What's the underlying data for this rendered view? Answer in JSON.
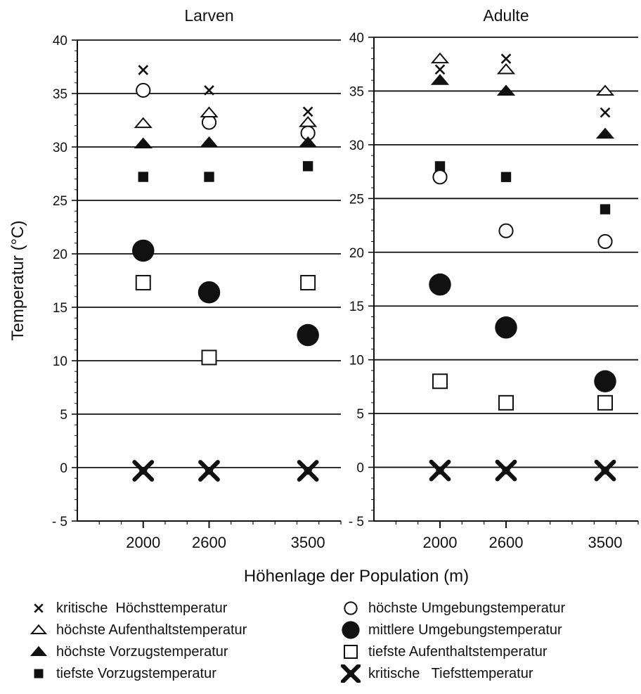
{
  "chart_data": {
    "type": "scatter",
    "ylabel": "Temperatur (°C)",
    "xlabel": "Höhenlage der Population (m)",
    "ylim": [
      -5,
      40
    ],
    "yticks": [
      40,
      35,
      30,
      25,
      20,
      15,
      10,
      5,
      0,
      -5
    ],
    "ytick_labels": [
      "40",
      "35",
      "30",
      "25",
      "20",
      "15",
      "10",
      "5",
      "0",
      "- 5"
    ],
    "xlim": [
      1400,
      3800
    ],
    "xticks": [
      2000,
      2600,
      3500
    ],
    "grid": "horizontal lines at every 5 °C",
    "legend_placement": "bottom",
    "series_meta": [
      {
        "key": "krit_hoechst",
        "name": "kritische  Höchsttemperatur",
        "marker": "small-x"
      },
      {
        "key": "hoechste_aufenthalt",
        "name": "höchste Aufenthaltstemperatur",
        "marker": "open-triangle"
      },
      {
        "key": "hoechste_vorzug",
        "name": "höchste Vorzugstemperatur",
        "marker": "filled-triangle"
      },
      {
        "key": "tiefste_vorzug",
        "name": "tiefste Vorzugstemperatur",
        "marker": "filled-square"
      },
      {
        "key": "hoechste_umgebung",
        "name": "höchste Umgebungstemperatur",
        "marker": "open-circle"
      },
      {
        "key": "mittlere_umgebung",
        "name": "mittlere Umgebungstemperatur",
        "marker": "filled-circle"
      },
      {
        "key": "tiefste_aufenthalt",
        "name": "tiefste Aufenthaltstemperatur",
        "marker": "open-square"
      },
      {
        "key": "krit_tiefst",
        "name": "kritische   Tiefsttemperatur",
        "marker": "big-x"
      }
    ],
    "panels": [
      {
        "title": "Larven",
        "x": [
          2000,
          2600,
          3500
        ],
        "series": {
          "krit_hoechst": [
            37.2,
            35.3,
            33.3
          ],
          "hoechste_aufenthalt": [
            32.2,
            33.2,
            32.3
          ],
          "hoechste_vorzug": [
            30.3,
            30.4,
            30.4
          ],
          "tiefste_vorzug": [
            27.2,
            27.2,
            28.2
          ],
          "hoechste_umgebung": [
            35.3,
            32.3,
            31.3
          ],
          "mittlere_umgebung": [
            20.3,
            16.4,
            12.4
          ],
          "tiefste_aufenthalt": [
            17.3,
            10.3,
            17.3
          ],
          "krit_tiefst": [
            -0.3,
            -0.3,
            -0.3
          ]
        }
      },
      {
        "title": "Adulte",
        "x": [
          2000,
          2600,
          3500
        ],
        "series": {
          "krit_hoechst": [
            37.0,
            38.0,
            33.0
          ],
          "hoechste_aufenthalt": [
            38.0,
            37.0,
            35.0
          ],
          "hoechste_vorzug": [
            36.0,
            35.0,
            31.0
          ],
          "tiefste_vorzug": [
            28.0,
            27.0,
            24.0
          ],
          "hoechste_umgebung": [
            27.0,
            22.0,
            21.0
          ],
          "mittlere_umgebung": [
            17.0,
            13.0,
            8.0
          ],
          "tiefste_aufenthalt": [
            8.0,
            6.0,
            6.0
          ],
          "krit_tiefst": [
            -0.3,
            -0.3,
            -0.3
          ]
        }
      }
    ]
  },
  "legend": {
    "col1": [
      "krit_hoechst",
      "hoechste_aufenthalt",
      "hoechste_vorzug",
      "tiefste_vorzug"
    ],
    "col2": [
      "hoechste_umgebung",
      "mittlere_umgebung",
      "tiefste_aufenthalt",
      "krit_tiefst"
    ]
  }
}
